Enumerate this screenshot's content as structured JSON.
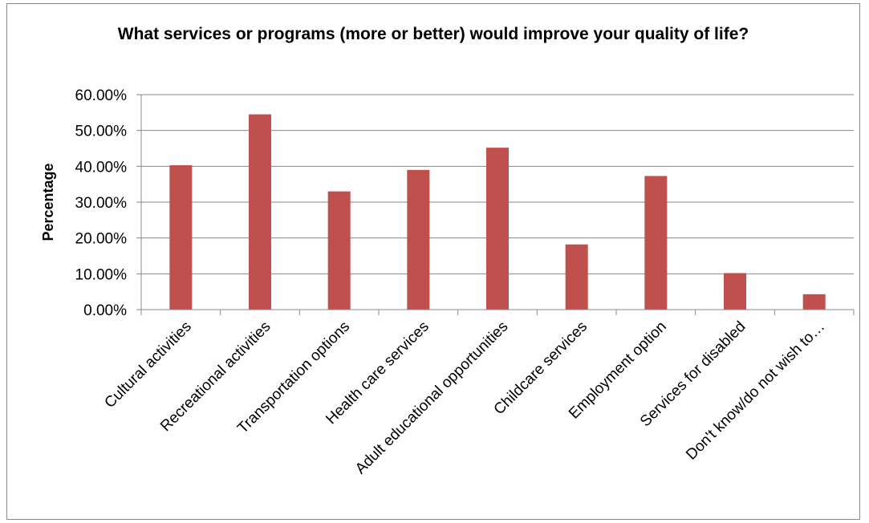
{
  "chart_data": {
    "type": "bar",
    "title": "What services or programs (more or better) would improve your quality of life?",
    "ylabel": "Percentage",
    "xlabel": "",
    "ylim": [
      0,
      0.6
    ],
    "yticks": [
      0,
      0.1,
      0.2,
      0.3,
      0.4,
      0.5,
      0.6
    ],
    "ytick_labels": [
      "0.00%",
      "10.00%",
      "20.00%",
      "30.00%",
      "40.00%",
      "50.00%",
      "60.00%"
    ],
    "grid": true,
    "legend": "none",
    "bar_color": "#c0504d",
    "categories": [
      "Cultural activities",
      "Recreational activities",
      "Transportation options",
      "Health care services",
      "Adult educational opportunities",
      "Childcare services",
      "Employment option",
      "Services for disabled",
      "Don't know/do not wish to…"
    ],
    "values": [
      0.403,
      0.545,
      0.33,
      0.39,
      0.452,
      0.182,
      0.373,
      0.102,
      0.043
    ]
  }
}
